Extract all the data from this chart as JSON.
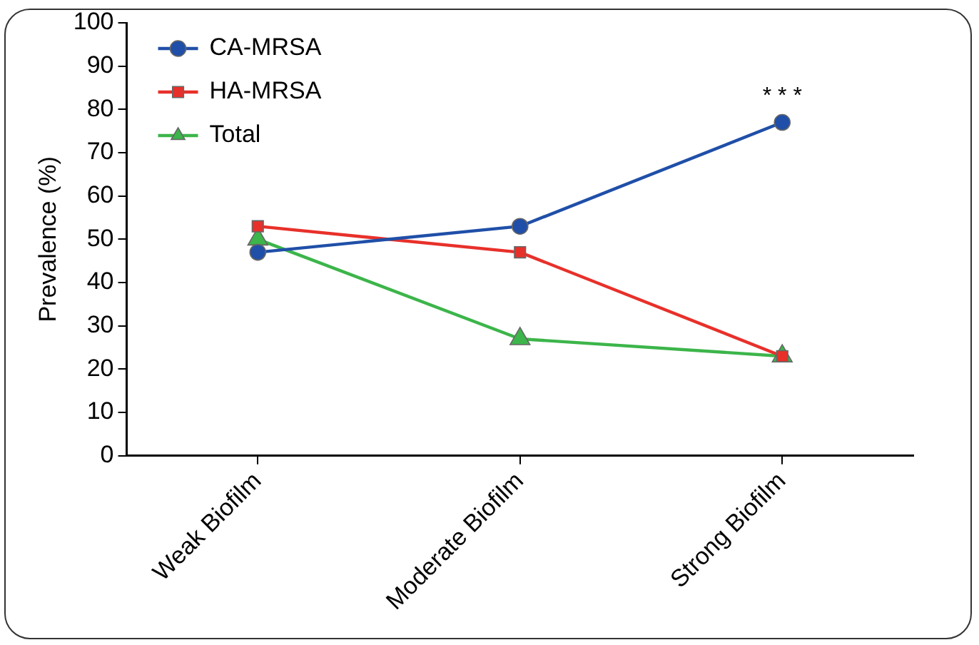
{
  "chart_data": {
    "type": "line",
    "ylabel": "Prevalence (%)",
    "categories": [
      "Weak Biofilm",
      "Moderate Biofilm",
      "Strong Biofilm"
    ],
    "series": [
      {
        "name": "CA-MRSA",
        "color": "#1f4fa8",
        "values": [
          47,
          53,
          77
        ],
        "marker": "circle"
      },
      {
        "name": "HA-MRSA",
        "color": "#e8302a",
        "values": [
          53,
          47,
          23
        ],
        "marker": "square"
      },
      {
        "name": "Total",
        "color": "#3cb54a",
        "values": [
          50,
          27,
          23
        ],
        "marker": "triangle"
      }
    ],
    "ylim": [
      0,
      100
    ],
    "yticks": [
      0,
      10,
      20,
      30,
      40,
      50,
      60,
      70,
      80,
      90,
      100
    ],
    "legend": "top left",
    "annotations": [
      {
        "text": "* * *",
        "x": "Strong Biofilm",
        "y": 77
      }
    ]
  }
}
